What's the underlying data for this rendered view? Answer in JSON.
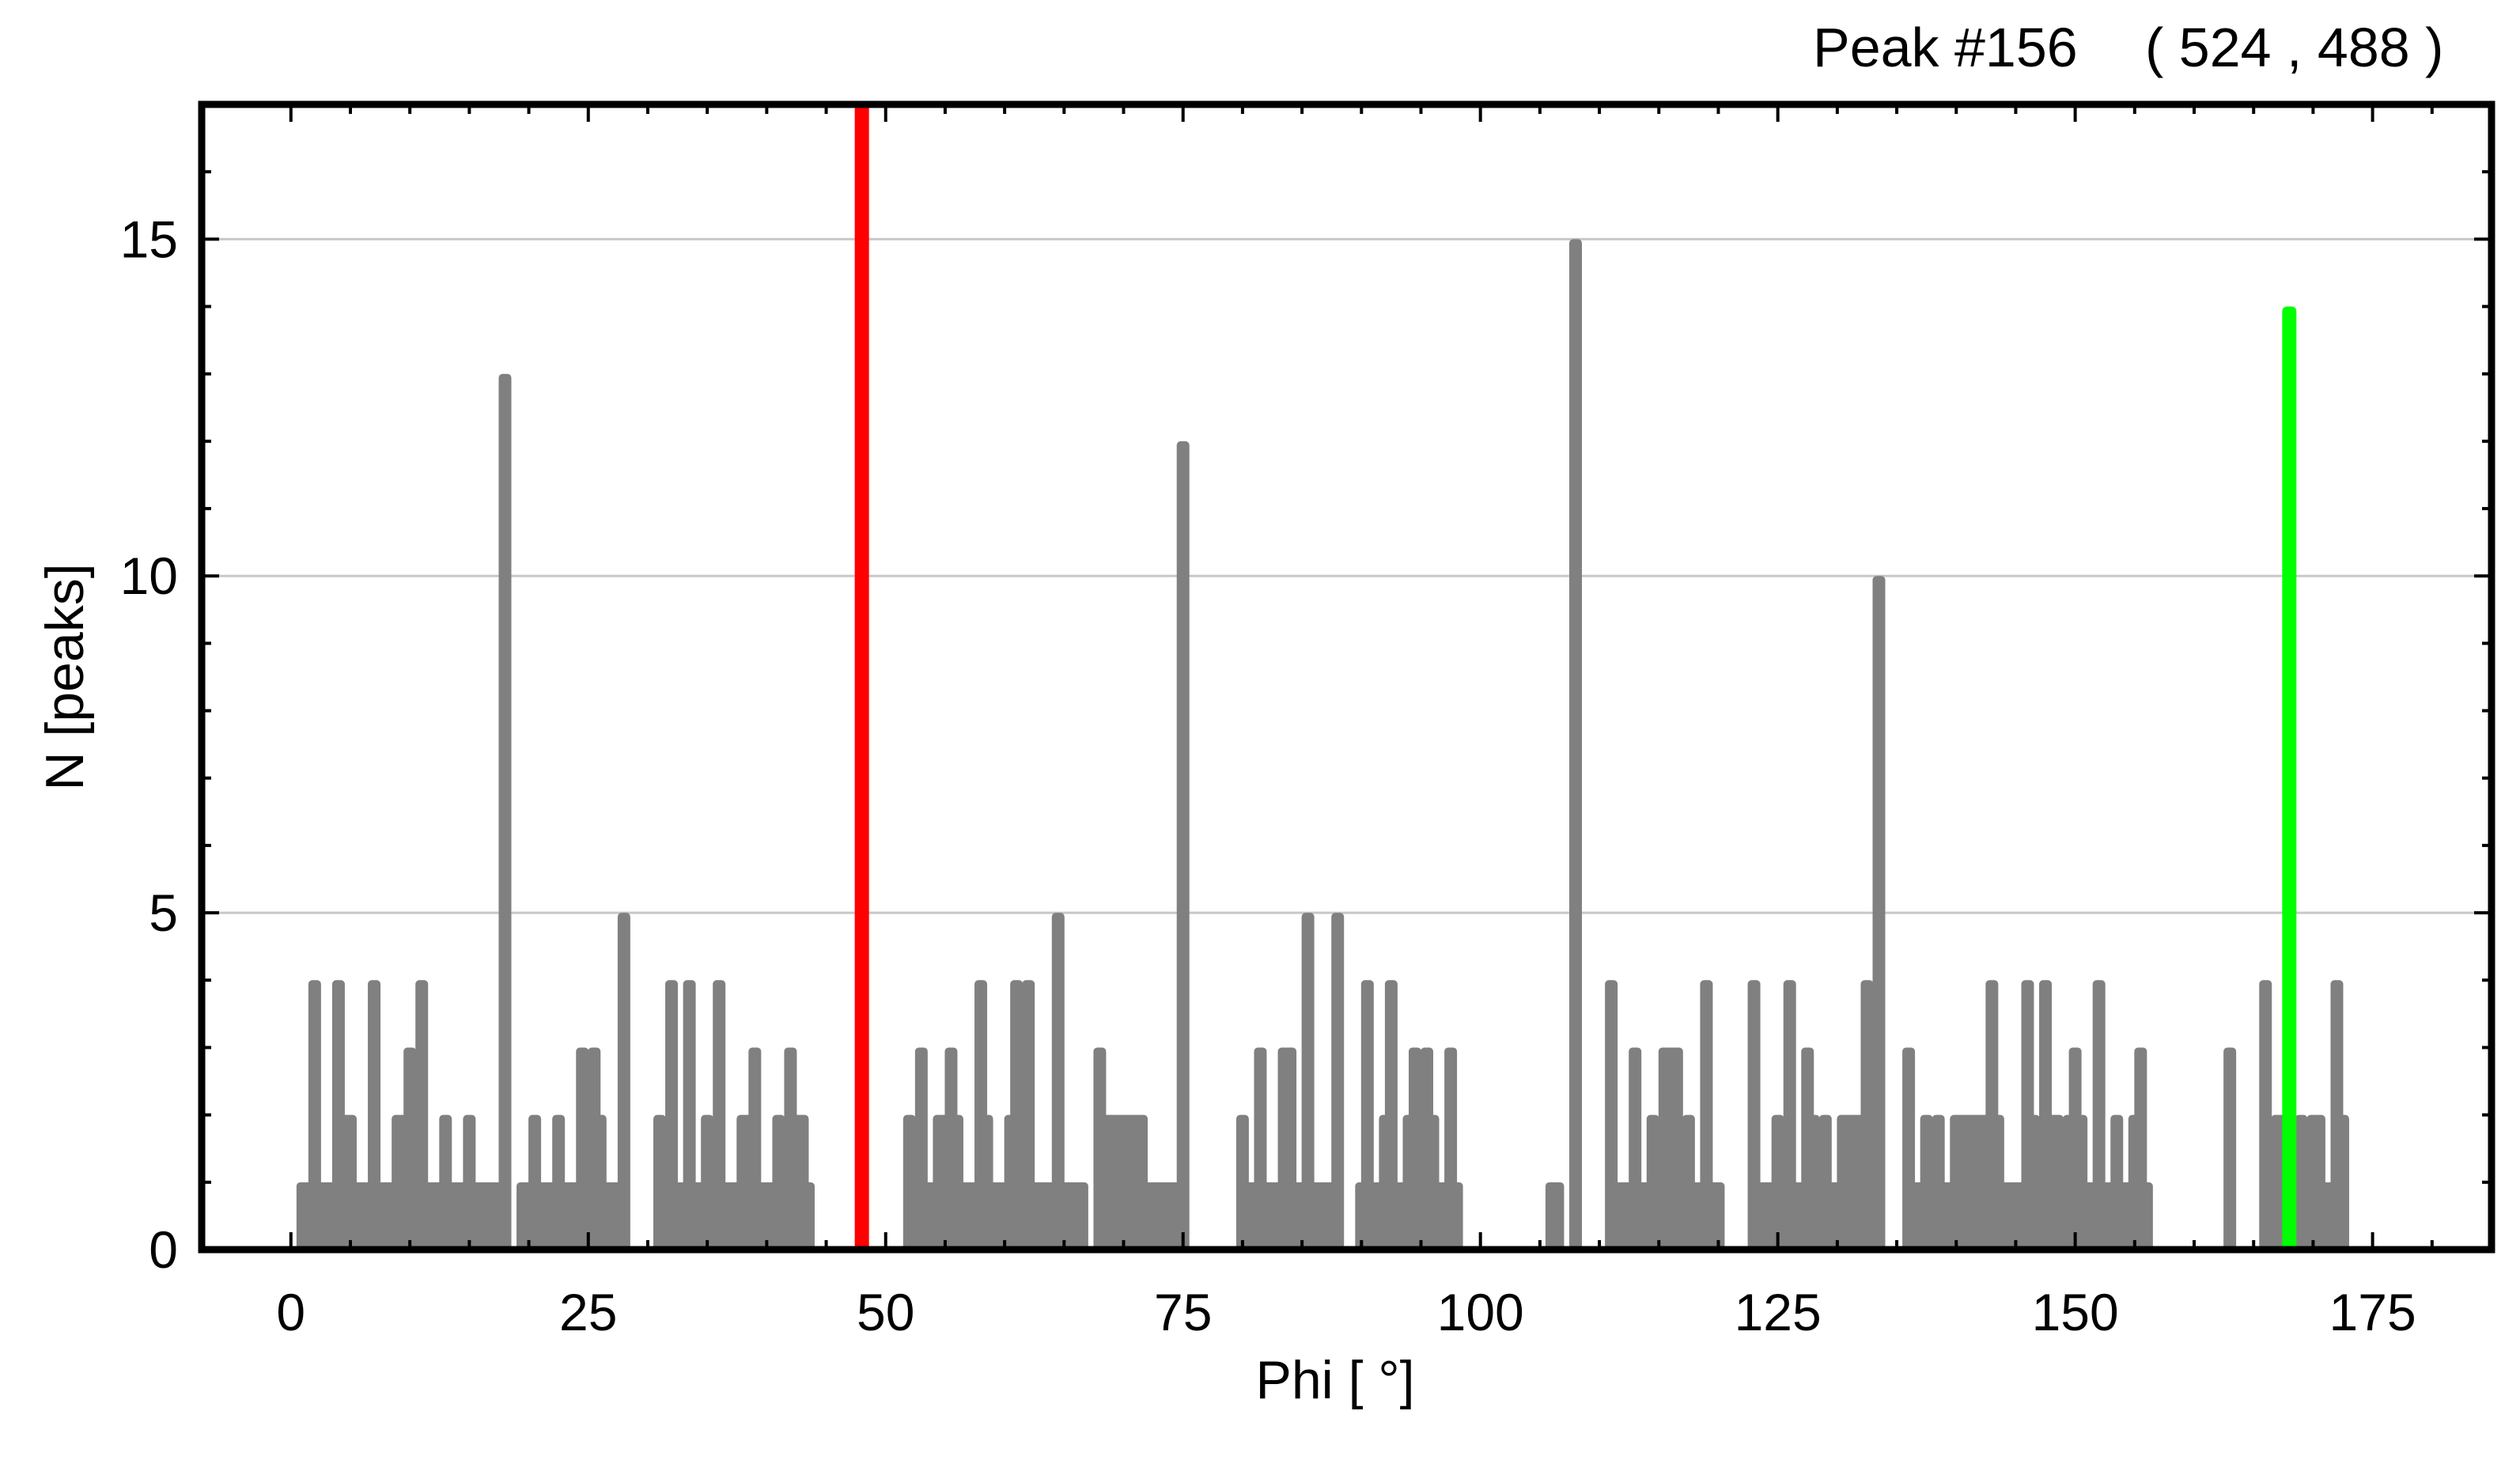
{
  "header": {
    "peak_label": "Peak #156",
    "coords": "( 524 , 488 )"
  },
  "chart_data": {
    "type": "bar",
    "xlabel": "Phi [ °]",
    "ylabel": "N [peaks]",
    "xlim": [
      -7.5,
      185
    ],
    "ylim": [
      0,
      17
    ],
    "xticks": [
      0,
      25,
      50,
      75,
      100,
      125,
      150,
      175
    ],
    "yticks": [
      0,
      5,
      10,
      15
    ],
    "grid": "horizontal",
    "bar_color": "#808080",
    "series": [
      {
        "values": [
          [
            1,
            1
          ],
          [
            1.5,
            1
          ],
          [
            2,
            4
          ],
          [
            2.5,
            1
          ],
          [
            3,
            1
          ],
          [
            3.5,
            1
          ],
          [
            4,
            4
          ],
          [
            4.5,
            2
          ],
          [
            5,
            2
          ],
          [
            5.5,
            1
          ],
          [
            6,
            1
          ],
          [
            6.5,
            1
          ],
          [
            7,
            4
          ],
          [
            7.5,
            1
          ],
          [
            8,
            1
          ],
          [
            8.5,
            1
          ],
          [
            9,
            2
          ],
          [
            9.5,
            2
          ],
          [
            10,
            3
          ],
          [
            10.5,
            2
          ],
          [
            11,
            4
          ],
          [
            11.5,
            1
          ],
          [
            12,
            1
          ],
          [
            12.5,
            1
          ],
          [
            13,
            2
          ],
          [
            13.5,
            1
          ],
          [
            14,
            1
          ],
          [
            14.5,
            1
          ],
          [
            15,
            2
          ],
          [
            15.5,
            1
          ],
          [
            16,
            1
          ],
          [
            16.5,
            1
          ],
          [
            17,
            1
          ],
          [
            17.5,
            1
          ],
          [
            18,
            13
          ],
          [
            19.5,
            1
          ],
          [
            20,
            1
          ],
          [
            20.5,
            2
          ],
          [
            21,
            1
          ],
          [
            21.5,
            1
          ],
          [
            22,
            1
          ],
          [
            22.5,
            2
          ],
          [
            23,
            1
          ],
          [
            23.5,
            1
          ],
          [
            24,
            1
          ],
          [
            24.5,
            3
          ],
          [
            25,
            2
          ],
          [
            25.5,
            3
          ],
          [
            26,
            2
          ],
          [
            26.5,
            1
          ],
          [
            27,
            1
          ],
          [
            27.5,
            1
          ],
          [
            28,
            5
          ],
          [
            31,
            2
          ],
          [
            31.5,
            1
          ],
          [
            32,
            4
          ],
          [
            32.5,
            1
          ],
          [
            33,
            1
          ],
          [
            33.5,
            4
          ],
          [
            34,
            1
          ],
          [
            34.5,
            1
          ],
          [
            35,
            2
          ],
          [
            35.5,
            1
          ],
          [
            36,
            4
          ],
          [
            36.5,
            1
          ],
          [
            37,
            1
          ],
          [
            37.5,
            1
          ],
          [
            38,
            2
          ],
          [
            38.5,
            2
          ],
          [
            39,
            3
          ],
          [
            39.5,
            1
          ],
          [
            40,
            1
          ],
          [
            40.5,
            1
          ],
          [
            41,
            2
          ],
          [
            41.5,
            1
          ],
          [
            42,
            3
          ],
          [
            42.5,
            2
          ],
          [
            43,
            2
          ],
          [
            43.5,
            1
          ],
          [
            52,
            2
          ],
          [
            52.5,
            1
          ],
          [
            53,
            3
          ],
          [
            53.5,
            1
          ],
          [
            54,
            1
          ],
          [
            54.5,
            2
          ],
          [
            55,
            2
          ],
          [
            55.5,
            3
          ],
          [
            56,
            2
          ],
          [
            56.5,
            1
          ],
          [
            57,
            1
          ],
          [
            57.5,
            1
          ],
          [
            58,
            4
          ],
          [
            58.5,
            2
          ],
          [
            59,
            1
          ],
          [
            59.5,
            1
          ],
          [
            60,
            1
          ],
          [
            60.5,
            2
          ],
          [
            61,
            4
          ],
          [
            61.5,
            1
          ],
          [
            62,
            4
          ],
          [
            62.5,
            1
          ],
          [
            63,
            1
          ],
          [
            63.5,
            1
          ],
          [
            64,
            1
          ],
          [
            64.5,
            5
          ],
          [
            65,
            1
          ],
          [
            65.5,
            1
          ],
          [
            66,
            1
          ],
          [
            66.5,
            1
          ],
          [
            68,
            3
          ],
          [
            68.5,
            2
          ],
          [
            69,
            2
          ],
          [
            69.5,
            2
          ],
          [
            70,
            2
          ],
          [
            70.5,
            2
          ],
          [
            71,
            2
          ],
          [
            71.5,
            2
          ],
          [
            72,
            1
          ],
          [
            72.5,
            1
          ],
          [
            73,
            1
          ],
          [
            73.5,
            1
          ],
          [
            74,
            1
          ],
          [
            74.5,
            1
          ],
          [
            75,
            12
          ],
          [
            80,
            2
          ],
          [
            80.5,
            1
          ],
          [
            81,
            1
          ],
          [
            81.5,
            3
          ],
          [
            82,
            1
          ],
          [
            82.5,
            1
          ],
          [
            83,
            1
          ],
          [
            83.5,
            3
          ],
          [
            84,
            3
          ],
          [
            84.5,
            1
          ],
          [
            85,
            1
          ],
          [
            85.5,
            5
          ],
          [
            86,
            1
          ],
          [
            86.5,
            1
          ],
          [
            87,
            1
          ],
          [
            87.5,
            1
          ],
          [
            88,
            5
          ],
          [
            90,
            1
          ],
          [
            90.5,
            4
          ],
          [
            91,
            1
          ],
          [
            91.5,
            1
          ],
          [
            92,
            2
          ],
          [
            92.5,
            4
          ],
          [
            93,
            1
          ],
          [
            93.5,
            1
          ],
          [
            94,
            2
          ],
          [
            94.5,
            3
          ],
          [
            95,
            2
          ],
          [
            95.5,
            3
          ],
          [
            96,
            2
          ],
          [
            96.5,
            1
          ],
          [
            97,
            1
          ],
          [
            97.5,
            3
          ],
          [
            98,
            1
          ],
          [
            106,
            1
          ],
          [
            106.5,
            1
          ],
          [
            108,
            15
          ],
          [
            111,
            4
          ],
          [
            111.5,
            1
          ],
          [
            112,
            1
          ],
          [
            112.5,
            1
          ],
          [
            113,
            3
          ],
          [
            113.5,
            1
          ],
          [
            114,
            1
          ],
          [
            114.5,
            2
          ],
          [
            115,
            1
          ],
          [
            115.5,
            3
          ],
          [
            116,
            3
          ],
          [
            116.5,
            3
          ],
          [
            117,
            1
          ],
          [
            117.5,
            2
          ],
          [
            118,
            1
          ],
          [
            118.5,
            1
          ],
          [
            119,
            4
          ],
          [
            119.5,
            1
          ],
          [
            120,
            1
          ],
          [
            123,
            4
          ],
          [
            123.5,
            1
          ],
          [
            124,
            1
          ],
          [
            124.5,
            1
          ],
          [
            125,
            2
          ],
          [
            125.5,
            1
          ],
          [
            126,
            4
          ],
          [
            126.5,
            1
          ],
          [
            127,
            1
          ],
          [
            127.5,
            3
          ],
          [
            128,
            2
          ],
          [
            128.5,
            1
          ],
          [
            129,
            2
          ],
          [
            129.5,
            1
          ],
          [
            130,
            1
          ],
          [
            130.5,
            2
          ],
          [
            131,
            2
          ],
          [
            131.5,
            2
          ],
          [
            132,
            2
          ],
          [
            132.5,
            4
          ],
          [
            133,
            1
          ],
          [
            133.5,
            10
          ],
          [
            136,
            3
          ],
          [
            136.5,
            1
          ],
          [
            137,
            1
          ],
          [
            137.5,
            2
          ],
          [
            138,
            1
          ],
          [
            138.5,
            2
          ],
          [
            139,
            1
          ],
          [
            139.5,
            1
          ],
          [
            140,
            2
          ],
          [
            140.5,
            2
          ],
          [
            141,
            2
          ],
          [
            141.5,
            2
          ],
          [
            142,
            2
          ],
          [
            142.5,
            2
          ],
          [
            143,
            4
          ],
          [
            143.5,
            2
          ],
          [
            144,
            1
          ],
          [
            144.5,
            1
          ],
          [
            145,
            1
          ],
          [
            145.5,
            1
          ],
          [
            146,
            4
          ],
          [
            146.5,
            2
          ],
          [
            147,
            1
          ],
          [
            147.5,
            4
          ],
          [
            148,
            2
          ],
          [
            148.5,
            2
          ],
          [
            149,
            1
          ],
          [
            149.5,
            2
          ],
          [
            150,
            3
          ],
          [
            150.5,
            2
          ],
          [
            151,
            1
          ],
          [
            151.5,
            1
          ],
          [
            152,
            4
          ],
          [
            152.5,
            1
          ],
          [
            153,
            1
          ],
          [
            153.5,
            2
          ],
          [
            154,
            1
          ],
          [
            154.5,
            1
          ],
          [
            155,
            2
          ],
          [
            155.5,
            3
          ],
          [
            156,
            1
          ],
          [
            163,
            3
          ],
          [
            166,
            4
          ],
          [
            166.5,
            1
          ],
          [
            167,
            2
          ],
          [
            167.5,
            2
          ],
          [
            168,
            2
          ],
          [
            168.5,
            1
          ],
          [
            169,
            2
          ],
          [
            169.5,
            1
          ],
          [
            170,
            2
          ],
          [
            170.5,
            2
          ],
          [
            171,
            1
          ],
          [
            171.5,
            1
          ],
          [
            172,
            4
          ],
          [
            172.5,
            2
          ]
        ]
      }
    ],
    "markers": [
      {
        "color": "#ff0000",
        "x": 48,
        "full_height": true
      },
      {
        "color": "#00ff00",
        "x": 168,
        "y": 14
      }
    ]
  }
}
